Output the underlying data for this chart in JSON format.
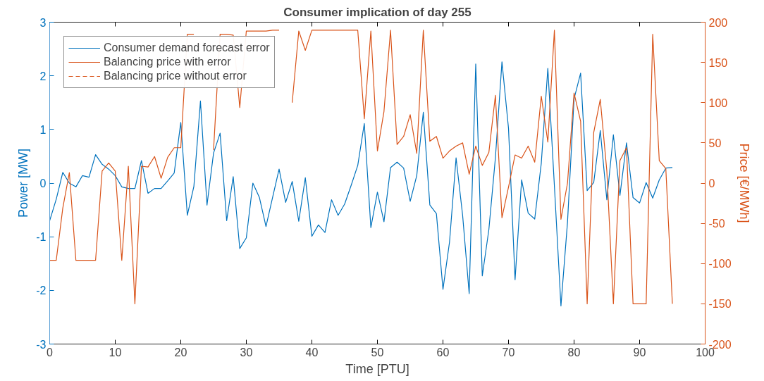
{
  "chart_data": {
    "type": "line",
    "title": "Consumer implication of day 255",
    "xlabel": "Time [PTU]",
    "ylabel": "Power [MW]",
    "y2label": "Price [€/MWh]",
    "x": [
      0,
      1,
      2,
      3,
      4,
      5,
      6,
      7,
      8,
      9,
      10,
      11,
      12,
      13,
      14,
      15,
      16,
      17,
      18,
      19,
      20,
      21,
      22,
      23,
      24,
      25,
      26,
      27,
      28,
      29,
      30,
      31,
      32,
      33,
      34,
      35,
      36,
      37,
      38,
      39,
      40,
      41,
      42,
      43,
      44,
      45,
      46,
      47,
      48,
      49,
      50,
      51,
      52,
      53,
      54,
      55,
      56,
      57,
      58,
      59,
      60,
      61,
      62,
      63,
      64,
      65,
      66,
      67,
      68,
      69,
      70,
      71,
      72,
      73,
      74,
      75,
      76,
      77,
      78,
      79,
      80,
      81,
      82,
      83,
      84,
      85,
      86,
      87,
      88,
      89,
      90,
      91,
      92,
      93,
      94,
      95
    ],
    "xlim": [
      0,
      100
    ],
    "xticks": [
      0,
      10,
      20,
      30,
      40,
      50,
      60,
      70,
      80,
      90,
      100
    ],
    "ylim": [
      -3,
      3
    ],
    "yticks": [
      -3,
      -2,
      -1,
      0,
      1,
      2,
      3
    ],
    "y2lim": [
      -200,
      200
    ],
    "y2ticks": [
      -200,
      -150,
      -100,
      -50,
      0,
      50,
      100,
      150,
      200
    ],
    "grid": false,
    "legend": "top left",
    "series": [
      {
        "name": "Consumer demand forecast error",
        "color": "#0072bd",
        "line_style": "solid",
        "values": [
          -0.7,
          -0.3,
          0.2,
          0.0,
          -0.07,
          0.14,
          0.11,
          0.53,
          0.35,
          0.26,
          0.14,
          -0.07,
          -0.1,
          -0.1,
          0.42,
          -0.19,
          -0.1,
          -0.1,
          0.04,
          0.19,
          1.13,
          -0.6,
          -0.06,
          1.53,
          -0.41,
          0.56,
          0.93,
          -0.7,
          0.12,
          -1.22,
          -1.02,
          0.0,
          -0.27,
          -0.81,
          -0.27,
          0.26,
          -0.36,
          0.03,
          -0.71,
          0.1,
          -0.99,
          -0.78,
          -0.92,
          -0.31,
          -0.6,
          -0.39,
          -0.04,
          0.33,
          1.11,
          -0.83,
          -0.17,
          -0.72,
          0.29,
          0.39,
          0.28,
          -0.34,
          0.14,
          1.32,
          -0.41,
          -0.57,
          -1.98,
          -1.1,
          0.47,
          -0.6,
          -2.06,
          2.22,
          -1.73,
          -0.87,
          0.47,
          2.26,
          1.02,
          -1.8,
          0.06,
          -0.56,
          -0.67,
          0.37,
          2.14,
          -0.05,
          -2.29,
          -0.73,
          1.57,
          2.05,
          -0.14,
          0.01,
          0.98,
          -0.31,
          0.9,
          -0.23,
          0.75,
          -0.27,
          -0.37,
          0.01,
          -0.28,
          0.06,
          0.28,
          0.29
        ]
      },
      {
        "name": "Balancing price with error",
        "color": "#d95319",
        "axis": "y2",
        "line_style": "solid",
        "values": [
          -96,
          -96,
          -31,
          13,
          -96,
          -96,
          -96,
          -96,
          15,
          25,
          15,
          -96,
          21,
          -150,
          21,
          20,
          33,
          6,
          32,
          44,
          44,
          185,
          185,
          null,
          null,
          41,
          185,
          185,
          184,
          94,
          189,
          189,
          189,
          189,
          190,
          190,
          null,
          100,
          189,
          165,
          190,
          190,
          190,
          190,
          190,
          190,
          190,
          190,
          80,
          189,
          40,
          89,
          190,
          48,
          58,
          85,
          37,
          190,
          52,
          58,
          31,
          40,
          46,
          50,
          11,
          46,
          22,
          38,
          109,
          -43,
          -5,
          35,
          31,
          46,
          26,
          108,
          51,
          190,
          -45,
          0,
          112,
          77,
          -150,
          63,
          104,
          15,
          -150,
          28,
          44,
          -150,
          -150,
          -150,
          185,
          28,
          18,
          -150
        ]
      },
      {
        "name": "Balancing price without error",
        "color": "#d95319",
        "axis": "y2",
        "line_style": "dashed",
        "values": [
          null,
          null,
          null,
          null,
          null,
          null,
          null,
          null,
          null,
          null,
          null,
          null,
          null,
          null,
          null,
          null,
          null,
          null,
          null,
          null,
          null,
          null,
          null,
          null,
          null,
          null,
          null,
          null,
          null,
          null,
          null,
          null,
          null,
          null,
          null,
          null,
          null,
          null,
          null,
          null,
          null,
          null,
          null,
          null,
          null,
          null,
          null,
          null,
          null,
          null,
          null,
          null,
          null,
          null,
          null,
          null,
          null,
          null,
          null,
          null,
          null,
          null,
          null,
          null,
          null,
          null,
          null,
          null,
          null,
          null,
          null,
          null,
          null,
          null,
          null,
          null,
          null,
          null,
          null,
          null,
          null,
          null,
          null,
          null,
          null,
          null,
          null,
          null,
          null,
          null,
          null,
          null,
          null,
          null,
          null,
          null
        ]
      }
    ]
  }
}
